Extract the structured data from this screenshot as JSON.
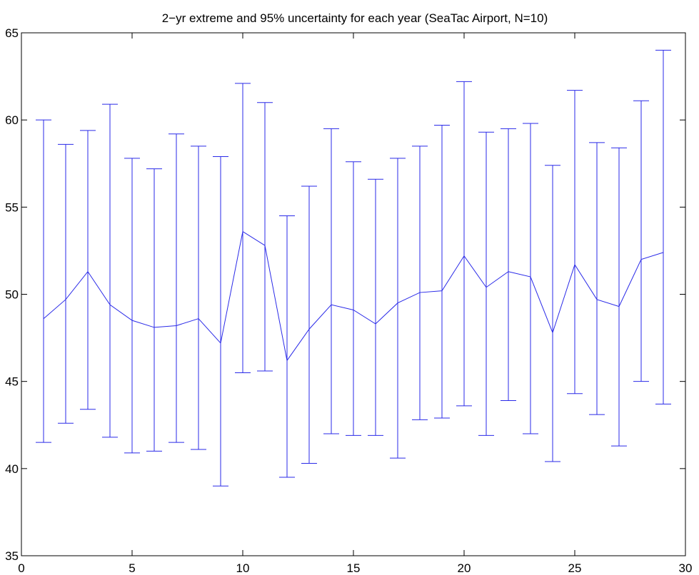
{
  "chart_data": {
    "type": "line",
    "title": "2−yr extreme and 95% uncertainty for each year (SeaTac Airport, N=10)",
    "xlabel": "",
    "ylabel": "",
    "xlim": [
      0,
      30
    ],
    "ylim": [
      35,
      65
    ],
    "xticks": [
      0,
      5,
      10,
      15,
      20,
      25,
      30
    ],
    "yticks": [
      35,
      40,
      45,
      50,
      55,
      60,
      65
    ],
    "grid": false,
    "colors": {
      "series": "#2a2ae8",
      "axis": "#000000"
    },
    "series": [
      {
        "x": [
          1,
          2,
          3,
          4,
          5,
          6,
          7,
          8,
          9,
          10,
          11,
          12,
          13,
          14,
          15,
          16,
          17,
          18,
          19,
          20,
          21,
          22,
          23,
          24,
          25,
          26,
          27,
          28,
          29
        ],
        "values": [
          48.6,
          49.7,
          51.3,
          49.4,
          48.5,
          48.1,
          48.2,
          48.6,
          47.2,
          53.6,
          52.8,
          46.2,
          48.0,
          49.4,
          49.1,
          48.3,
          49.5,
          50.1,
          50.2,
          52.2,
          50.4,
          51.3,
          51.0,
          47.8,
          51.7,
          49.7,
          49.3,
          52.0,
          52.4
        ],
        "lower": [
          41.5,
          42.6,
          43.4,
          41.8,
          40.9,
          41.0,
          41.5,
          41.1,
          39.0,
          45.5,
          45.6,
          39.5,
          40.3,
          42.0,
          41.9,
          41.9,
          40.6,
          42.8,
          42.9,
          43.6,
          41.9,
          43.9,
          42.0,
          40.4,
          44.3,
          43.1,
          41.3,
          45.0,
          43.7
        ],
        "upper": [
          60.0,
          58.6,
          59.4,
          60.9,
          57.8,
          57.2,
          59.2,
          58.5,
          57.9,
          62.1,
          61.0,
          54.5,
          56.2,
          59.5,
          57.6,
          56.6,
          57.8,
          58.5,
          59.7,
          62.2,
          59.3,
          59.5,
          59.8,
          57.4,
          61.7,
          58.7,
          58.4,
          61.1,
          64.0
        ]
      }
    ]
  }
}
